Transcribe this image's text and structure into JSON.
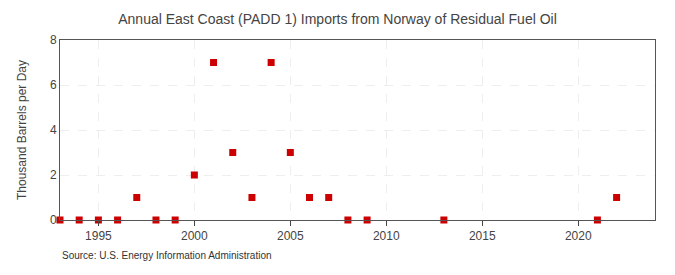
{
  "chart_data": {
    "type": "scatter",
    "title": "Annual East Coast (PADD 1) Imports from Norway of Residual Fuel Oil",
    "ylabel": "Thousand Barrels per Day",
    "annotations": [
      "Source: U.S. Energy Information Administration"
    ],
    "x": [
      1993,
      1994,
      1995,
      1996,
      1997,
      1998,
      1999,
      2000,
      2001,
      2002,
      2003,
      2004,
      2005,
      2006,
      2007,
      2008,
      2009,
      2013,
      2021,
      2022
    ],
    "values": [
      0,
      0,
      0,
      0,
      1,
      0,
      0,
      2,
      7,
      3,
      1,
      7,
      3,
      1,
      1,
      0,
      0,
      0,
      0,
      1
    ],
    "color": "#cc0000",
    "marker": "square",
    "xlim": [
      1993,
      2024
    ],
    "ylim": [
      0,
      8
    ],
    "xticks": [
      1995,
      2000,
      2005,
      2010,
      2015,
      2020
    ],
    "yticks": [
      0,
      2,
      4,
      6,
      8
    ],
    "grid": true
  }
}
